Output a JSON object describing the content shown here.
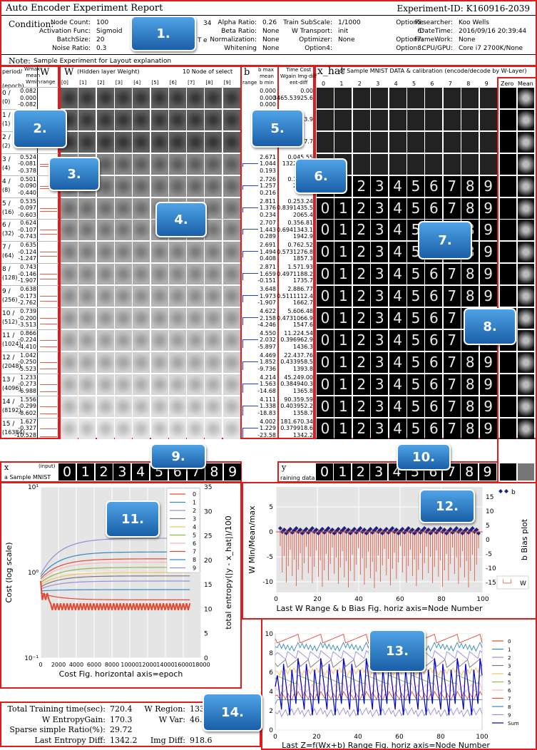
{
  "report": {
    "title": "Auto Encoder Experiment Report",
    "experiment_id": "Experiment-ID:  K160916-2039"
  },
  "condition": {
    "label": "Condition:",
    "col1": [
      [
        "Node Count:",
        "100"
      ],
      [
        "Activation Func:",
        "Sigmoid"
      ],
      [
        "BatchSize:",
        "20"
      ],
      [
        "Noise Ratio:",
        "0.3"
      ]
    ],
    "col2": [
      [
        "Alpha Ratio:",
        "0.26"
      ],
      [
        "Beta Ratio:",
        "None"
      ],
      [
        "Normalization:",
        "None"
      ],
      [
        "Whitening",
        "None"
      ]
    ],
    "col3": [
      [
        "Train SubScale:",
        "1/1000"
      ],
      [
        "W Transport:",
        "init"
      ],
      [
        "Optimizer:",
        "None"
      ],
      [
        "Option4:",
        ""
      ]
    ],
    "col4": [
      [
        "Option5:",
        ""
      ],
      [
        "6:",
        ""
      ],
      [
        "Option7:",
        ""
      ],
      [
        "Option8:",
        ""
      ]
    ],
    "col5": [
      [
        "Researcher:",
        "Koo Wells"
      ],
      [
        "DateTime:",
        "2016/09/16 20:39:44"
      ],
      [
        "FrameWork:",
        "None"
      ],
      [
        "CPU/GPU:",
        "Core i7 2700K/None"
      ]
    ],
    "partial": [
      "34",
      "T",
      "e"
    ]
  },
  "note": {
    "label": "Note:",
    "text": "Sample Experiment for Layout explanation"
  },
  "headers": {
    "period": [
      "period/",
      "(epoch)"
    ],
    "wmax_col": [
      "Wmax",
      "mean",
      "Wmin"
    ],
    "w_small": "W",
    "range": "range",
    "w_big": "W",
    "w_sub": "(Hidden layer Weight)",
    "w_nodes": "10 Node of select",
    "b": "b",
    "b_stats": [
      "b max",
      "mean",
      "b min"
    ],
    "time_cost": [
      "Time Cost",
      "Wgain",
      "Img-diff",
      "ent-diff"
    ],
    "xhat": "x_hat",
    "xhat_sub": "of Sample MNIST DATA & calibration (encode/decode by W-Layer)",
    "node_idx": [
      "[0]",
      "[1]",
      "[2]",
      "[3]",
      "[4]",
      "[5]",
      "[6]",
      "[7]",
      "[8]",
      "[9]"
    ],
    "digit_idx": [
      "0",
      "1",
      "2",
      "3",
      "4",
      "5",
      "6",
      "7",
      "8",
      "9"
    ],
    "zero": "Zero",
    "mean": "Mean"
  },
  "rows": [
    {
      "period": [
        "0 /",
        "(0)"
      ],
      "w": [
        "0.082",
        "0.000",
        "-0.082"
      ],
      "b": [
        "0.000",
        "0.000",
        "0.000"
      ],
      "tc": [
        "",
        "0.00",
        "3465.5",
        "3925.6"
      ]
    },
    {
      "period": [
        "1 /",
        "(1)"
      ],
      "w": [
        "",
        "",
        ""
      ],
      "b": [
        "",
        "",
        ""
      ],
      "tc": [
        "",
        "",
        ".814",
        "3.9"
      ]
    },
    {
      "period": [
        "2 /",
        "(2)"
      ],
      "w": [
        "",
        "",
        ""
      ],
      "b": [
        "",
        "",
        ""
      ],
      "tc": [
        "",
        "",
        "151",
        "7.7"
      ]
    },
    {
      "period": [
        "3 /",
        "(4)"
      ],
      "w": [
        "0.524",
        "-0.081",
        "-0.378"
      ],
      "b": [
        "2.671",
        "1.044",
        "0.193"
      ],
      "tc": [
        "0.0",
        "45.55",
        "132",
        "2562.2"
      ]
    },
    {
      "period": [
        "4 /",
        "(8)"
      ],
      "w": [
        "0.501",
        "-0.090",
        "-0.440"
      ],
      "b": [
        "2.726",
        "1.257",
        "0.216"
      ],
      "tc": [
        "0.1",
        "49.23",
        "",
        "2231.6"
      ]
    },
    {
      "period": [
        "5 /",
        "(16)"
      ],
      "w": [
        "0.535",
        "-0.097",
        "-0.603"
      ],
      "b": [
        "2.811",
        "1.376",
        "0.234"
      ],
      "tc": [
        "0.2",
        "53.24",
        "0.839",
        "1435.5",
        "2065.4"
      ]
    },
    {
      "period": [
        "6 /",
        "(32)"
      ],
      "w": [
        "0.624",
        "-0.107",
        "-0.743"
      ],
      "b": [
        "2.707",
        "1.443",
        "0.289"
      ],
      "tc": [
        "0.3",
        "56.81",
        "0.694",
        "1343.1",
        "1942.9"
      ]
    },
    {
      "period": [
        "7 /",
        "(64)"
      ],
      "w": [
        "0.635",
        "-0.124",
        "-1.247"
      ],
      "b": [
        "2.691",
        "1.494",
        "0.408"
      ],
      "tc": [
        "0.7",
        "62.52",
        "0.573",
        "1276.8",
        "1857.3"
      ]
    },
    {
      "period": [
        "8 /",
        "(128)"
      ],
      "w": [
        "0.743",
        "-0.146",
        "-1.907"
      ],
      "b": [
        "2.871",
        "1.659",
        "-0.151"
      ],
      "tc": [
        "1.5",
        "71.93",
        "0.497",
        "1188.2",
        "1735.7"
      ]
    },
    {
      "period": [
        "9 /",
        "(256)"
      ],
      "w": [
        "0.638",
        "-0.173",
        "-2.762"
      ],
      "b": [
        "3.648",
        "1.973",
        "-1.907"
      ],
      "tc": [
        "2.8",
        "86.77",
        "0.511",
        "1112.4",
        "1662.7"
      ]
    },
    {
      "period": [
        "10 /",
        "(512)"
      ],
      "w": [
        "0.739",
        "-0.200",
        "-3.513"
      ],
      "b": [
        "4.622",
        "2.158",
        "-4.246"
      ],
      "tc": [
        "5.6",
        "06.48",
        "0.473",
        "1066.9",
        "1547.6"
      ]
    },
    {
      "period": [
        "11 /",
        "(1024)"
      ],
      "w": [
        "0.866",
        "-0.224",
        "-4.410"
      ],
      "b": [
        "4.550",
        "2.032",
        "-5.897"
      ],
      "tc": [
        "11.2",
        "24.54",
        "0.396",
        "962.9",
        "1436.3"
      ]
    },
    {
      "period": [
        "12 /",
        "(2048)"
      ],
      "w": [
        "1.042",
        "-0.250",
        "-5.523"
      ],
      "b": [
        "4.469",
        "1.852",
        "-9.736"
      ],
      "tc": [
        "22.4",
        "37.76",
        "0.433",
        "958.5",
        "1393.8"
      ]
    },
    {
      "period": [
        "13 /",
        "(4096)"
      ],
      "w": [
        "1.233",
        "-0.273",
        "-6.988"
      ],
      "b": [
        "4.214",
        "1.563",
        "-14.68"
      ],
      "tc": [
        "45.2",
        "49.00",
        "0.384",
        "940.3",
        "1365.8"
      ]
    },
    {
      "period": [
        "14 /",
        "(8192)"
      ],
      "w": [
        "1.556",
        "-0.299",
        "-8.602"
      ],
      "b": [
        "4.111",
        "1.338",
        "-18.83"
      ],
      "tc": [
        "90.3",
        "59.59",
        "0.403",
        "952.2",
        "1358.7"
      ]
    },
    {
      "period": [
        "15 /",
        "(16384)"
      ],
      "w": [
        "1.627",
        "-0.327",
        "-10.528"
      ],
      "b": [
        "4.002",
        "1.229",
        "-23.58"
      ],
      "tc": [
        "181.6",
        "70.34",
        "0.379",
        "918.6",
        "1342.2"
      ]
    }
  ],
  "x_strip": {
    "label": "x",
    "tag": "(input)",
    "caption": "a Sample MNIST",
    "digits": [
      "0",
      "1",
      "2",
      "3",
      "4",
      "5",
      "6",
      "7",
      "8",
      "9"
    ]
  },
  "y_strip": {
    "label": "y",
    "caption": "raining data",
    "digits": [
      "0",
      "1",
      "2",
      "3",
      "4",
      "5",
      "6",
      "7",
      "8",
      "9"
    ]
  },
  "cost_chart": {
    "ylabel": "Cost  (log scale)",
    "y2label": "total entropy(|y - x_hat|)/100",
    "caption": "Cost Fig.  horizontal axis=epoch",
    "yticks": [
      "10⁰",
      "10⁻¹"
    ],
    "ytick_top": "10¹",
    "y2ticks": [
      "0",
      "5",
      "10",
      "15",
      "20",
      "25",
      "30",
      "35"
    ],
    "xticks": [
      "0",
      "2000",
      "4000",
      "6000",
      "8000",
      "10000",
      "12000",
      "14000",
      "16000",
      "18000"
    ],
    "legend": [
      "0",
      "1",
      "2",
      "3",
      "4",
      "5",
      "6",
      "7",
      "8",
      "9"
    ],
    "colors": [
      "#e24a33",
      "#348abd",
      "#988ed5",
      "#777777",
      "#fbc15e",
      "#8eba42",
      "#ffb5b8",
      "#e24a33",
      "#348abd",
      "#988ed5"
    ]
  },
  "w_chart": {
    "ylabel": "W Min/Mean/max",
    "y2label": "b Bias plot",
    "caption": "Last W Range & b Bias Fig.  horiz axis=Node Number",
    "yticks": [
      "5",
      "0",
      "-5",
      "-10"
    ],
    "y2ticks": [
      "15",
      "10",
      "5",
      "0",
      "-5",
      "-10",
      "-15"
    ],
    "xticks": [
      "0",
      "20",
      "40",
      "60",
      "80",
      "100"
    ],
    "legend_b": "b",
    "legend_w": "W"
  },
  "z_chart": {
    "caption": "Last Z=f(Wx+b) Range Fig.  horiz axis=Node Number",
    "yticks": [
      "10",
      "8",
      "6",
      "4",
      "2",
      "0"
    ],
    "xticks": [
      "0",
      "20",
      "40",
      "60",
      "80",
      "100"
    ],
    "legend": [
      "0",
      "1",
      "2",
      "3",
      "4",
      "5",
      "6",
      "7",
      "8",
      "9",
      "Sum"
    ],
    "colors": [
      "#e24a33",
      "#348abd",
      "#988ed5",
      "#777777",
      "#fbc15e",
      "#8eba42",
      "#ffb5b8",
      "#e24a33",
      "#348abd",
      "#988ed5",
      "#0000cc"
    ]
  },
  "summary": {
    "lines": [
      [
        "Total Training time(sec):",
        "720.4",
        "W Region:",
        "133.6"
      ],
      [
        "W EntropyGain:",
        "170.3",
        "W Var:",
        "46.09"
      ],
      [
        "Sparse simple Ratio(%):",
        "29.72",
        "",
        ""
      ],
      [
        "Last Entropy Diff:",
        "1342.2",
        "Img Diff:",
        "918.6"
      ]
    ]
  },
  "callouts": [
    "1.",
    "2.",
    "3.",
    "4.",
    "5.",
    "6.",
    "7.",
    "8.",
    "9.",
    "10.",
    "11.",
    "12.",
    "13.",
    "14."
  ]
}
